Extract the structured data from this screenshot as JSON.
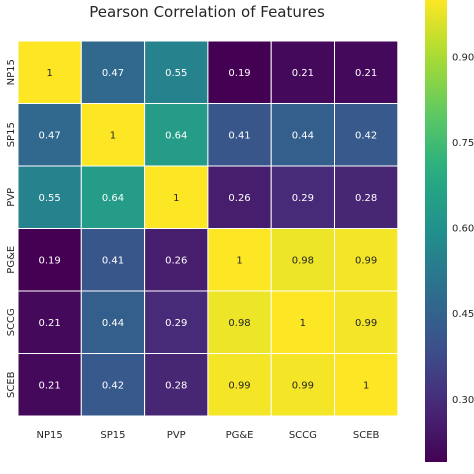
{
  "chart_data": {
    "type": "heatmap",
    "title": "Pearson Correlation of Features",
    "x_labels": [
      "NP15",
      "SP15",
      "PVP",
      "PG&E",
      "SCCG",
      "SCEB"
    ],
    "y_labels": [
      "NP15",
      "SP15",
      "PVP",
      "PG&E",
      "SCCG",
      "SCEB"
    ],
    "values": [
      [
        1,
        0.47,
        0.55,
        0.19,
        0.21,
        0.21
      ],
      [
        0.47,
        1,
        0.64,
        0.41,
        0.44,
        0.42
      ],
      [
        0.55,
        0.64,
        1,
        0.26,
        0.29,
        0.28
      ],
      [
        0.19,
        0.41,
        0.26,
        1,
        0.98,
        0.99
      ],
      [
        0.21,
        0.44,
        0.29,
        0.98,
        1,
        0.99
      ],
      [
        0.21,
        0.42,
        0.28,
        0.99,
        0.99,
        1
      ]
    ],
    "value_labels": [
      [
        "1",
        "0.47",
        "0.55",
        "0.19",
        "0.21",
        "0.21"
      ],
      [
        "0.47",
        "1",
        "0.64",
        "0.41",
        "0.44",
        "0.42"
      ],
      [
        "0.55",
        "0.64",
        "1",
        "0.26",
        "0.29",
        "0.28"
      ],
      [
        "0.19",
        "0.41",
        "0.26",
        "1",
        "0.98",
        "0.99"
      ],
      [
        "0.21",
        "0.44",
        "0.29",
        "0.98",
        "1",
        "0.99"
      ],
      [
        "0.21",
        "0.42",
        "0.28",
        "0.99",
        "0.99",
        "1"
      ]
    ],
    "colormap": "viridis",
    "colorbar": {
      "range": [
        0.19,
        1
      ],
      "tick_values": [
        0.3,
        0.45,
        0.6,
        0.75,
        0.9
      ],
      "tick_labels": [
        "0.300",
        "0.450",
        "0.600",
        "0.750",
        "0.900"
      ],
      "position": "right"
    }
  }
}
